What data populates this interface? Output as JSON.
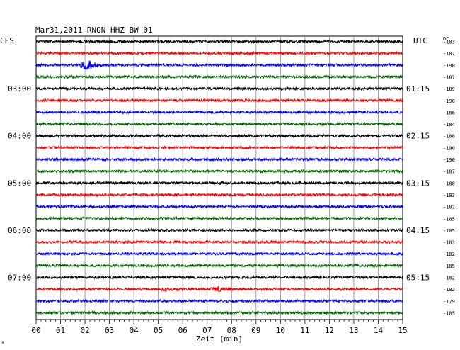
{
  "header": {
    "title": "Mar31,2011   RNON HHZ BW 01",
    "left_zone": "CES",
    "right_zone": "UTC",
    "dc_label": "DC"
  },
  "chart_data": {
    "type": "line",
    "x": {
      "label": "Zeit [min]",
      "range": [
        0,
        15
      ],
      "ticks": [
        "00",
        "01",
        "02",
        "03",
        "04",
        "05",
        "06",
        "07",
        "08",
        "09",
        "10",
        "11",
        "12",
        "13",
        "14",
        "15"
      ]
    },
    "left_time_labels": [
      {
        "row": 4,
        "text": "03:00"
      },
      {
        "row": 8,
        "text": "04:00"
      },
      {
        "row": 12,
        "text": "05:00"
      },
      {
        "row": 16,
        "text": "06:00"
      },
      {
        "row": 20,
        "text": "07:00"
      }
    ],
    "right_time_labels": [
      {
        "row": 4,
        "text": "01:15"
      },
      {
        "row": 8,
        "text": "02:15"
      },
      {
        "row": 12,
        "text": "03:15"
      },
      {
        "row": 16,
        "text": "04:15"
      },
      {
        "row": 20,
        "text": "05:15"
      }
    ],
    "dc_offsets": [
      "-183",
      "-187",
      "-190",
      "-187",
      "-189",
      "-190",
      "-186",
      "-184",
      "-188",
      "-190",
      "-190",
      "-187",
      "-188",
      "-183",
      "-182",
      "-185",
      "-185",
      "-183",
      "-182",
      "-185",
      "-182",
      "-182",
      "-179",
      "-185"
    ],
    "trace_colors": [
      "#000000",
      "#ff0000",
      "#0000ff",
      "#006600"
    ],
    "events": [
      {
        "row": 2,
        "minute": 2.1,
        "amplitude": "large"
      },
      {
        "row": 21,
        "minute": 7.5,
        "amplitude": "medium"
      },
      {
        "row": 21,
        "minute": 5.3,
        "amplitude": "small"
      }
    ]
  }
}
